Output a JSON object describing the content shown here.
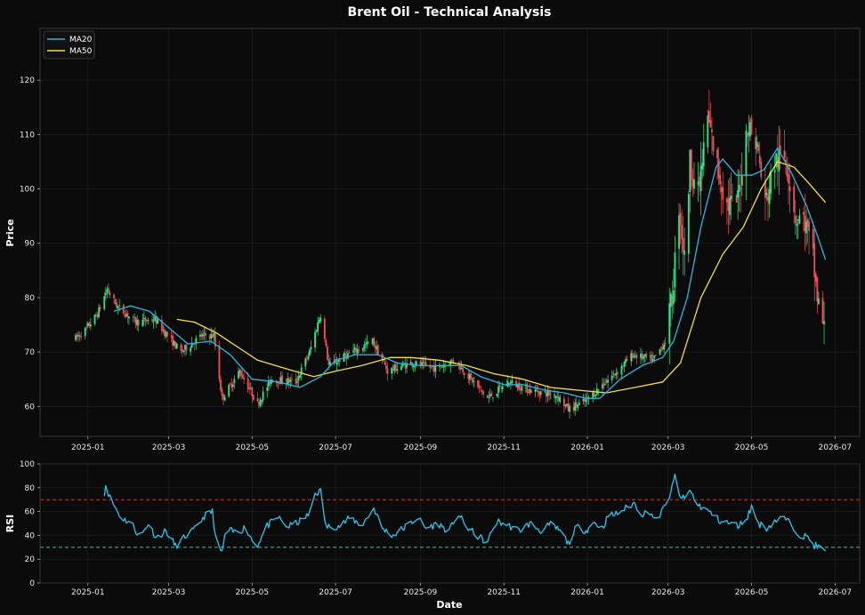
{
  "chart_data": [
    {
      "type": "candlestick",
      "title": "Brent Oil - Technical Analysis",
      "xlabel": "",
      "ylabel": "Price",
      "xlim": [
        "2024-11-27",
        "2026-07-19"
      ],
      "ylim": [
        54.5,
        129.5
      ],
      "x_ticks": [
        "2025-01",
        "2025-03",
        "2025-05",
        "2025-07",
        "2025-09",
        "2025-11",
        "2026-01",
        "2026-03",
        "2026-05",
        "2026-07"
      ],
      "y_ticks": [
        60,
        70,
        80,
        90,
        100,
        110,
        120
      ],
      "grid": true,
      "legend_position": "top-left",
      "colors": {
        "up": "#2ee88a",
        "down": "#f0505a",
        "ma20": "#29b6e0",
        "ma50": "#f2e03a"
      },
      "price_anchors": [
        [
          "2024-12-23",
          72.5
        ],
        [
          "2024-12-30",
          74.0
        ],
        [
          "2025-01-08",
          77.0
        ],
        [
          "2025-01-15",
          81.5
        ],
        [
          "2025-01-22",
          78.5
        ],
        [
          "2025-02-05",
          75.5
        ],
        [
          "2025-02-19",
          76.0
        ],
        [
          "2025-02-28",
          73.0
        ],
        [
          "2025-03-10",
          70.0
        ],
        [
          "2025-03-25",
          73.0
        ],
        [
          "2025-04-03",
          73.0
        ],
        [
          "2025-04-09",
          61.5
        ],
        [
          "2025-04-22",
          66.5
        ],
        [
          "2025-05-05",
          60.5
        ],
        [
          "2025-05-15",
          65.0
        ],
        [
          "2025-06-02",
          64.5
        ],
        [
          "2025-06-12",
          70.0
        ],
        [
          "2025-06-20",
          77.0
        ],
        [
          "2025-06-26",
          67.5
        ],
        [
          "2025-07-10",
          69.5
        ],
        [
          "2025-07-28",
          72.0
        ],
        [
          "2025-08-08",
          66.5
        ],
        [
          "2025-08-25",
          68.0
        ],
        [
          "2025-09-12",
          67.0
        ],
        [
          "2025-09-26",
          68.5
        ],
        [
          "2025-10-08",
          65.0
        ],
        [
          "2025-10-20",
          61.5
        ],
        [
          "2025-11-05",
          64.5
        ],
        [
          "2025-11-20",
          63.0
        ],
        [
          "2025-12-10",
          62.0
        ],
        [
          "2025-12-18",
          59.5
        ],
        [
          "2025-12-31",
          61.0
        ],
        [
          "2026-01-12",
          64.0
        ],
        [
          "2026-01-23",
          66.5
        ],
        [
          "2026-02-03",
          69.5
        ],
        [
          "2026-02-18",
          68.5
        ],
        [
          "2026-02-27",
          72.0
        ],
        [
          "2026-03-04",
          80.0
        ],
        [
          "2026-03-09",
          97.0
        ],
        [
          "2026-03-13",
          87.0
        ],
        [
          "2026-03-17",
          105.0
        ],
        [
          "2026-03-23",
          99.0
        ],
        [
          "2026-03-30",
          113.0
        ],
        [
          "2026-04-06",
          104.0
        ],
        [
          "2026-04-13",
          97.0
        ],
        [
          "2026-04-21",
          98.0
        ],
        [
          "2026-04-28",
          112.0
        ],
        [
          "2026-05-05",
          108.0
        ],
        [
          "2026-05-11",
          97.0
        ],
        [
          "2026-05-18",
          105.0
        ],
        [
          "2026-05-26",
          106.0
        ],
        [
          "2026-06-02",
          95.0
        ],
        [
          "2026-06-09",
          94.0
        ],
        [
          "2026-06-15",
          87.0
        ],
        [
          "2026-06-18",
          80.0
        ],
        [
          "2026-06-23",
          74.0
        ]
      ],
      "ma20": [
        [
          "2025-01-20",
          77.5
        ],
        [
          "2025-02-01",
          78.5
        ],
        [
          "2025-02-15",
          77.5
        ],
        [
          "2025-03-01",
          74.5
        ],
        [
          "2025-03-15",
          71.5
        ],
        [
          "2025-04-01",
          72.0
        ],
        [
          "2025-04-15",
          69.5
        ],
        [
          "2025-05-01",
          65.0
        ],
        [
          "2025-05-20",
          64.5
        ],
        [
          "2025-06-05",
          63.5
        ],
        [
          "2025-06-20",
          65.5
        ],
        [
          "2025-07-01",
          68.5
        ],
        [
          "2025-07-15",
          69.5
        ],
        [
          "2025-08-01",
          69.5
        ],
        [
          "2025-08-15",
          68.0
        ],
        [
          "2025-09-01",
          67.5
        ],
        [
          "2025-09-15",
          67.5
        ],
        [
          "2025-10-01",
          67.5
        ],
        [
          "2025-10-15",
          65.5
        ],
        [
          "2025-11-01",
          64.0
        ],
        [
          "2025-11-15",
          64.0
        ],
        [
          "2025-12-01",
          63.0
        ],
        [
          "2025-12-15",
          62.5
        ],
        [
          "2025-12-31",
          61.5
        ],
        [
          "2026-01-10",
          61.5
        ],
        [
          "2026-01-25",
          65.0
        ],
        [
          "2026-02-10",
          67.5
        ],
        [
          "2026-02-25",
          69.0
        ],
        [
          "2026-03-05",
          72.0
        ],
        [
          "2026-03-15",
          80.0
        ],
        [
          "2026-03-25",
          93.0
        ],
        [
          "2026-04-05",
          104.0
        ],
        [
          "2026-04-10",
          105.5
        ],
        [
          "2026-04-20",
          102.5
        ],
        [
          "2026-05-01",
          102.5
        ],
        [
          "2026-05-10",
          103.5
        ],
        [
          "2026-05-20",
          107.5
        ],
        [
          "2026-05-30",
          103.0
        ],
        [
          "2026-06-10",
          97.0
        ],
        [
          "2026-06-18",
          91.5
        ],
        [
          "2026-06-24",
          87.0
        ]
      ],
      "ma50": [
        [
          "2025-03-07",
          76.0
        ],
        [
          "2025-03-20",
          75.5
        ],
        [
          "2025-04-05",
          73.5
        ],
        [
          "2025-04-20",
          71.0
        ],
        [
          "2025-05-05",
          68.5
        ],
        [
          "2025-05-25",
          67.0
        ],
        [
          "2025-06-15",
          65.5
        ],
        [
          "2025-07-01",
          66.5
        ],
        [
          "2025-07-20",
          67.5
        ],
        [
          "2025-08-10",
          69.0
        ],
        [
          "2025-08-25",
          69.0
        ],
        [
          "2025-09-15",
          68.5
        ],
        [
          "2025-10-05",
          67.5
        ],
        [
          "2025-10-25",
          66.0
        ],
        [
          "2025-11-15",
          65.0
        ],
        [
          "2025-12-05",
          63.5
        ],
        [
          "2025-12-25",
          63.0
        ],
        [
          "2026-01-15",
          62.5
        ],
        [
          "2026-02-05",
          63.5
        ],
        [
          "2026-02-25",
          64.5
        ],
        [
          "2026-03-10",
          68.0
        ],
        [
          "2026-03-25",
          80.0
        ],
        [
          "2026-04-10",
          88.0
        ],
        [
          "2026-04-25",
          93.0
        ],
        [
          "2026-05-08",
          100.0
        ],
        [
          "2026-05-20",
          105.0
        ],
        [
          "2026-06-01",
          104.0
        ],
        [
          "2026-06-12",
          101.0
        ],
        [
          "2026-06-24",
          97.5
        ]
      ],
      "legend": [
        {
          "label": "MA20",
          "color": "#29b6e0"
        },
        {
          "label": "MA50",
          "color": "#f2e03a"
        }
      ]
    },
    {
      "type": "line",
      "title": "",
      "xlabel": "Date",
      "ylabel": "RSI",
      "xlim": [
        "2024-11-27",
        "2026-07-19"
      ],
      "ylim": [
        0,
        100
      ],
      "x_ticks": [
        "2025-01",
        "2025-03",
        "2025-05",
        "2025-07",
        "2025-09",
        "2025-11",
        "2026-01",
        "2026-03",
        "2026-05",
        "2026-07"
      ],
      "y_ticks": [
        0,
        20,
        40,
        60,
        80,
        100
      ],
      "grid": true,
      "color": "#29c6ea",
      "reference_lines": [
        {
          "value": 70,
          "color": "#e03b3b"
        },
        {
          "value": 30,
          "color": "#2ee8a0"
        }
      ],
      "rsi": [
        [
          "2025-01-13",
          76
        ],
        [
          "2025-01-14",
          82
        ],
        [
          "2025-01-17",
          72
        ],
        [
          "2025-01-25",
          55
        ],
        [
          "2025-02-02",
          50
        ],
        [
          "2025-02-08",
          38
        ],
        [
          "2025-02-14",
          50
        ],
        [
          "2025-02-20",
          38
        ],
        [
          "2025-02-27",
          44
        ],
        [
          "2025-03-06",
          31
        ],
        [
          "2025-03-14",
          40
        ],
        [
          "2025-03-20",
          45
        ],
        [
          "2025-03-27",
          56
        ],
        [
          "2025-04-02",
          60
        ],
        [
          "2025-04-05",
          30
        ],
        [
          "2025-04-09",
          26
        ],
        [
          "2025-04-12",
          45
        ],
        [
          "2025-04-20",
          42
        ],
        [
          "2025-04-26",
          47
        ],
        [
          "2025-05-04",
          30
        ],
        [
          "2025-05-12",
          48
        ],
        [
          "2025-05-20",
          55
        ],
        [
          "2025-05-27",
          47
        ],
        [
          "2025-06-05",
          52
        ],
        [
          "2025-06-12",
          58
        ],
        [
          "2025-06-15",
          75
        ],
        [
          "2025-06-20",
          77
        ],
        [
          "2025-06-24",
          47
        ],
        [
          "2025-07-04",
          48
        ],
        [
          "2025-07-12",
          55
        ],
        [
          "2025-07-20",
          48
        ],
        [
          "2025-07-29",
          63
        ],
        [
          "2025-08-04",
          46
        ],
        [
          "2025-08-12",
          40
        ],
        [
          "2025-08-22",
          48
        ],
        [
          "2025-08-30",
          55
        ],
        [
          "2025-09-05",
          46
        ],
        [
          "2025-09-14",
          50
        ],
        [
          "2025-09-22",
          43
        ],
        [
          "2025-09-28",
          59
        ],
        [
          "2025-10-04",
          48
        ],
        [
          "2025-10-12",
          40
        ],
        [
          "2025-10-20",
          34
        ],
        [
          "2025-10-26",
          52
        ],
        [
          "2025-11-03",
          49
        ],
        [
          "2025-11-12",
          44
        ],
        [
          "2025-11-20",
          50
        ],
        [
          "2025-11-28",
          44
        ],
        [
          "2025-12-05",
          49
        ],
        [
          "2025-12-13",
          43
        ],
        [
          "2025-12-18",
          33
        ],
        [
          "2025-12-24",
          47
        ],
        [
          "2025-12-31",
          44
        ],
        [
          "2026-01-06",
          51
        ],
        [
          "2026-01-12",
          46
        ],
        [
          "2026-01-16",
          56
        ],
        [
          "2026-01-22",
          58
        ],
        [
          "2026-01-28",
          62
        ],
        [
          "2026-02-04",
          67
        ],
        [
          "2026-02-10",
          58
        ],
        [
          "2026-02-16",
          60
        ],
        [
          "2026-02-20",
          52
        ],
        [
          "2026-02-27",
          65
        ],
        [
          "2026-03-04",
          80
        ],
        [
          "2026-03-06",
          90
        ],
        [
          "2026-03-09",
          74
        ],
        [
          "2026-03-13",
          70
        ],
        [
          "2026-03-17",
          78
        ],
        [
          "2026-03-22",
          66
        ],
        [
          "2026-03-28",
          62
        ],
        [
          "2026-04-02",
          58
        ],
        [
          "2026-04-08",
          52
        ],
        [
          "2026-04-15",
          50
        ],
        [
          "2026-04-22",
          48
        ],
        [
          "2026-04-28",
          56
        ],
        [
          "2026-05-01",
          64
        ],
        [
          "2026-05-06",
          50
        ],
        [
          "2026-05-12",
          46
        ],
        [
          "2026-05-18",
          52
        ],
        [
          "2026-05-25",
          55
        ],
        [
          "2026-06-01",
          46
        ],
        [
          "2026-06-06",
          40
        ],
        [
          "2026-06-12",
          38
        ],
        [
          "2026-06-15",
          32
        ],
        [
          "2026-06-20",
          30
        ],
        [
          "2026-06-24",
          25
        ]
      ]
    }
  ]
}
